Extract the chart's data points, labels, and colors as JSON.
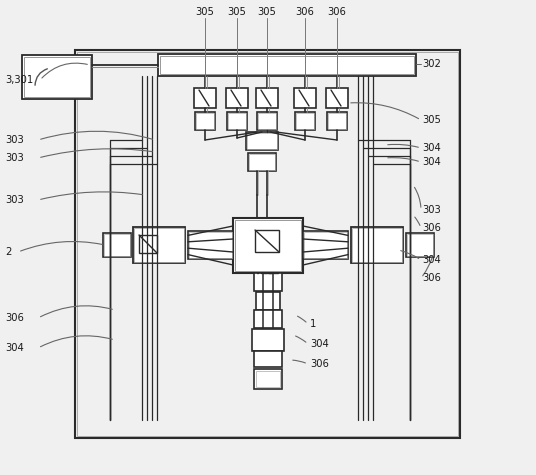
{
  "bg_color": "#f0f0f0",
  "line_color": "#2a2a2a",
  "box_fc": "#ffffff",
  "box_ec": "#2a2a2a",
  "lc": "#555555"
}
